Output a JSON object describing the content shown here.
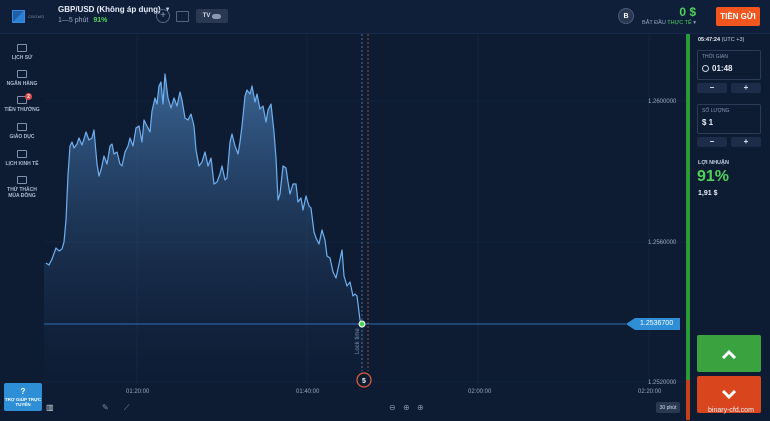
{
  "header": {
    "logo_text": "CBOMG",
    "asset_name": "GBP/USD (Không áp dụng)",
    "asset_timeframe": "1—5 phút",
    "asset_payout": "91%",
    "tv_label": "TV",
    "account_badge": "B",
    "balance": "0 $",
    "account_prefix": "BẮT ĐẦU",
    "account_type": "THỰC TẾ",
    "deposit_label": "TIỀN GỬI"
  },
  "sidebar": {
    "items": [
      {
        "label": "LỊCH SỬ"
      },
      {
        "label": "NGÂN HÀNG"
      },
      {
        "label": "TIỀN THƯỞNG",
        "badge": "2"
      },
      {
        "label": "GIÁO DỤC"
      },
      {
        "label": "LỊCH KINH TẾ"
      },
      {
        "label": "THỬ THÁCH MÙA ĐÔNG"
      }
    ],
    "help_icon": "?",
    "help_label": "TRỢ GIÚP TRỰC TUYẾN"
  },
  "chart": {
    "current_price": "1.2536700",
    "y_ticks": [
      "1.2600000",
      "1.2560000",
      "1.2520000"
    ],
    "x_ticks": [
      "01:20:00",
      "01:40:00",
      "02:00:00",
      "02:20:00"
    ],
    "lock_text": "Lock time",
    "expiry_marker": "5",
    "timeframe_button": "30 phút"
  },
  "panel": {
    "server_time": "05:47:24",
    "timezone": "(UTC +3)",
    "time_label": "THỜI GIAN",
    "time_value": "01:48",
    "amount_label": "SỐ LƯỢNG",
    "amount_value": "$ 1",
    "minus": "−",
    "plus": "+",
    "profit_label": "LỢI NHUẬN",
    "profit_pct": "91%",
    "profit_amount": "1,91 $"
  },
  "watermark": "binary-cfd.com",
  "colors": {
    "background": "#0d1b33",
    "accent_green": "#4fd25a",
    "deposit_orange": "#f0561e",
    "price_blue": "#2e8fd6",
    "call_green": "#3aa33f",
    "put_red": "#d9461e"
  }
}
